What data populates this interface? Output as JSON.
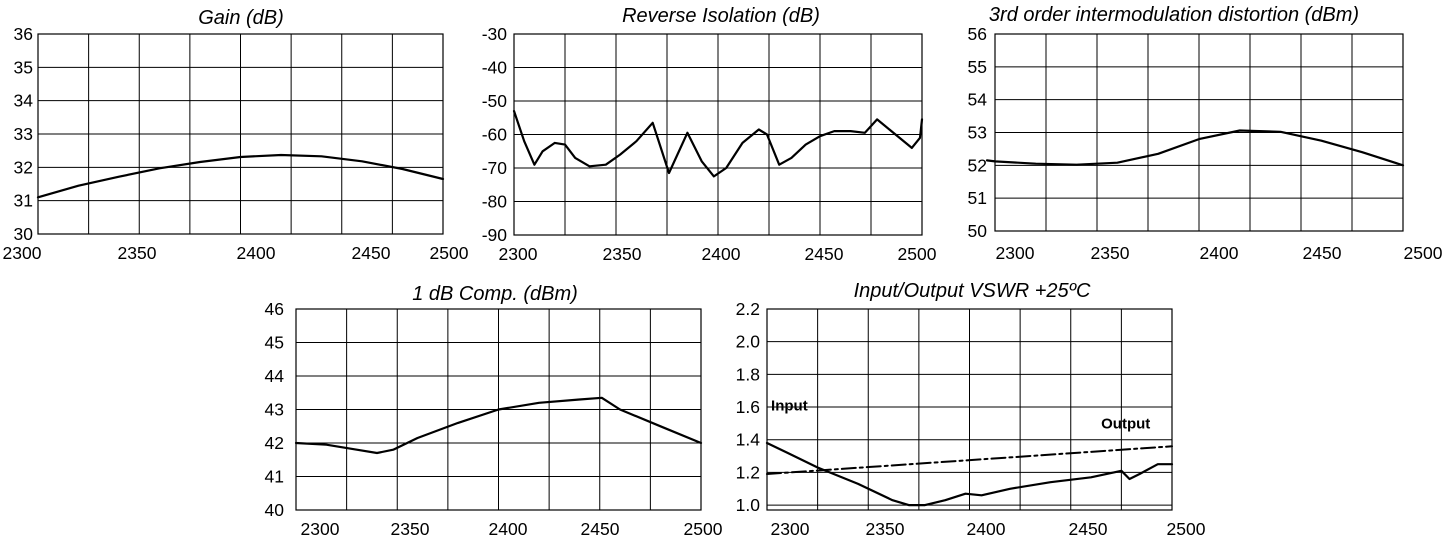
{
  "chart_data": [
    {
      "type": "line",
      "title": "Gain (dB)",
      "xlim": [
        2300,
        2500
      ],
      "ylim": [
        30,
        36
      ],
      "x_ticks": [
        "2300",
        "2350",
        "2400",
        "2450",
        "2500"
      ],
      "y_ticks": [
        "30",
        "31",
        "32",
        "33",
        "34",
        "35",
        "36"
      ],
      "x_grid_count": 8,
      "y_grid_count": 6,
      "grid": true,
      "series": [
        {
          "x": [
            2300,
            2320,
            2340,
            2360,
            2380,
            2400,
            2420,
            2440,
            2460,
            2480,
            2500
          ],
          "y": [
            31.1,
            31.45,
            31.72,
            31.97,
            32.16,
            32.31,
            32.37,
            32.33,
            32.18,
            31.95,
            31.65
          ]
        }
      ]
    },
    {
      "type": "line",
      "title": "Reverse Isolation (dB)",
      "xlim": [
        2300,
        2500
      ],
      "ylim": [
        -90,
        -30
      ],
      "x_ticks": [
        "2300",
        "2350",
        "2400",
        "2450",
        "2500"
      ],
      "y_ticks": [
        "-90",
        "-80",
        "-70",
        "-60",
        "-50",
        "-40",
        "-30"
      ],
      "x_grid_count": 8,
      "y_grid_count": 6,
      "grid": true,
      "series": [
        {
          "x": [
            2300,
            2305,
            2310,
            2314,
            2320,
            2325,
            2330,
            2337,
            2345,
            2352,
            2360,
            2368,
            2376,
            2385,
            2392,
            2398,
            2404,
            2412,
            2420,
            2424,
            2430,
            2436,
            2443,
            2450,
            2457,
            2465,
            2472,
            2478,
            2484,
            2490,
            2495,
            2499,
            2500
          ],
          "y": [
            -53,
            -62,
            -69,
            -65,
            -62.5,
            -63,
            -67,
            -69.5,
            -69,
            -66,
            -62,
            -56.5,
            -71.5,
            -59.5,
            -68,
            -72.5,
            -70,
            -62.5,
            -58.5,
            -60,
            -69,
            -67,
            -63,
            -60.5,
            -59,
            -59,
            -59.5,
            -55.5,
            -58.5,
            -61.5,
            -64,
            -61,
            -55.5
          ]
        }
      ]
    },
    {
      "type": "line",
      "title": "3rd order intermodulation distortion (dBm)",
      "xlim": [
        2300,
        2500
      ],
      "ylim": [
        50,
        56
      ],
      "x_ticks": [
        "2300",
        "2350",
        "2400",
        "2450",
        "2500"
      ],
      "y_ticks": [
        "50",
        "51",
        "52",
        "53",
        "54",
        "55",
        "56"
      ],
      "x_grid_count": 8,
      "y_grid_count": 6,
      "grid": true,
      "series": [
        {
          "x": [
            2290,
            2300,
            2320,
            2340,
            2360,
            2380,
            2400,
            2420,
            2440,
            2460,
            2480,
            2500
          ],
          "y": [
            52.15,
            52.12,
            52.05,
            52.02,
            52.08,
            52.35,
            52.8,
            53.06,
            53.02,
            52.75,
            52.4,
            52.0
          ]
        }
      ]
    },
    {
      "type": "line",
      "title": "1 dB Comp. (dBm)",
      "xlim": [
        2300,
        2500
      ],
      "ylim": [
        40,
        46
      ],
      "x_ticks": [
        "2300",
        "2350",
        "2400",
        "2450",
        "2500"
      ],
      "y_ticks": [
        "40",
        "41",
        "42",
        "43",
        "44",
        "45",
        "46"
      ],
      "x_grid_count": 8,
      "y_grid_count": 6,
      "grid": true,
      "series": [
        {
          "x": [
            2300,
            2315,
            2330,
            2340,
            2348,
            2360,
            2380,
            2400,
            2420,
            2440,
            2451,
            2460,
            2480,
            2500
          ],
          "y": [
            42.0,
            41.95,
            41.8,
            41.7,
            41.8,
            42.15,
            42.6,
            43.0,
            43.2,
            43.3,
            43.35,
            43.0,
            42.5,
            42.0
          ]
        }
      ]
    },
    {
      "type": "line",
      "title": "Input/Output VSWR +25ºC",
      "xlim": [
        2300,
        2500
      ],
      "ylim": [
        0.97,
        2.2
      ],
      "x_ticks": [
        "2300",
        "2350",
        "2400",
        "2450",
        "2500"
      ],
      "y_ticks": [
        "1.0",
        "1.2",
        "1.4",
        "1.6",
        "1.8",
        "2.0",
        "2.2"
      ],
      "y_tick_values": [
        1.0,
        1.2,
        1.4,
        1.6,
        1.8,
        2.0,
        2.2
      ],
      "x_grid_count": 8,
      "y_grid_count": 6,
      "grid": true,
      "series": [
        {
          "name": "Input",
          "x": [
            2300,
            2310,
            2325,
            2345,
            2362,
            2370,
            2378,
            2388,
            2398,
            2406,
            2420,
            2440,
            2460,
            2475,
            2479,
            2484,
            2493,
            2500
          ],
          "y": [
            1.38,
            1.32,
            1.23,
            1.13,
            1.03,
            1.0,
            1.0,
            1.03,
            1.07,
            1.06,
            1.1,
            1.14,
            1.17,
            1.21,
            1.16,
            1.19,
            1.25,
            1.25
          ]
        },
        {
          "name": "Output",
          "style": "dash-dot",
          "x": [
            2300,
            2500
          ],
          "y": [
            1.19,
            1.36
          ]
        }
      ],
      "annotations": [
        {
          "text": "Input",
          "anchor_x": 2302,
          "anchor_y": 1.58
        },
        {
          "text": "Output",
          "anchor_x": 2465,
          "anchor_y": 1.47
        }
      ]
    }
  ]
}
